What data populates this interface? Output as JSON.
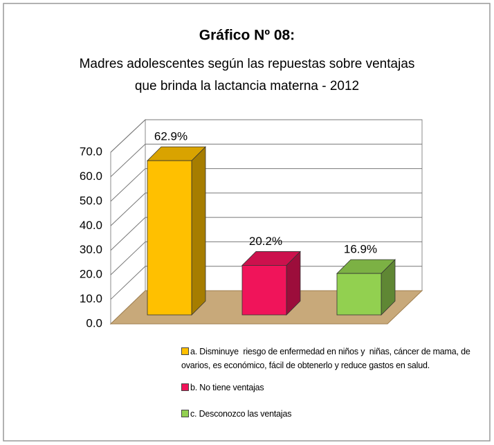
{
  "chart_data": {
    "type": "bar3d",
    "title": "Gráfico Nº 08:",
    "subtitle": [
      "Madres adolescentes según las repuestas sobre ventajas",
      "que brinda la lactancia materna - 2012"
    ],
    "categories": [
      "a. Disminuye  riesgo de enfermedad en niños y  niñas, cáncer de mama, de ovarios, es económico, fácil de obtenerlo y reduce gastos en salud.",
      "b. No tiene ventajas",
      "c. Desconozco las ventajas"
    ],
    "values": [
      62.9,
      20.2,
      16.9
    ],
    "value_labels": [
      "62.9%",
      "20.2%",
      "16.9%"
    ],
    "colors": [
      "#ffc000",
      "#f0145a",
      "#92d050"
    ],
    "ylim": [
      0,
      70
    ],
    "yticks": [
      {
        "value": 0,
        "label": "0.0"
      },
      {
        "value": 10,
        "label": "10.0"
      },
      {
        "value": 20,
        "label": "20.0"
      },
      {
        "value": 30,
        "label": "30.0"
      },
      {
        "value": 40,
        "label": "40.0"
      },
      {
        "value": 50,
        "label": "50.0"
      },
      {
        "value": 60,
        "label": "60.0"
      },
      {
        "value": 70,
        "label": "70.0"
      }
    ],
    "grid": true,
    "floor_color": "#c8a97a"
  }
}
